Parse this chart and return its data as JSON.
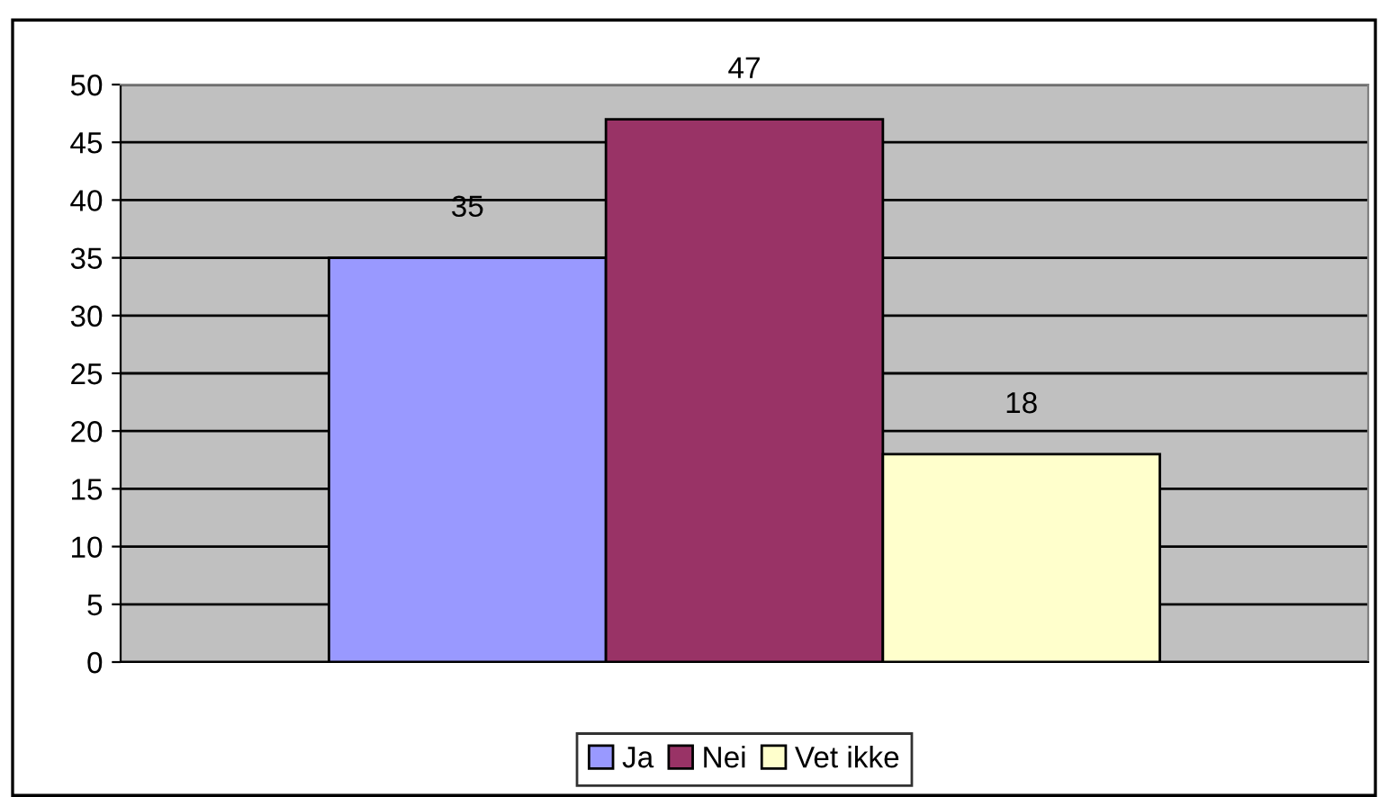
{
  "chart_data": {
    "type": "bar",
    "categories": [
      null
    ],
    "series": [
      {
        "name": "Ja",
        "color": "#9999ff",
        "values": [
          35
        ]
      },
      {
        "name": "Nei",
        "color": "#993366",
        "values": [
          47
        ]
      },
      {
        "name": "Vet ikke",
        "color": "#ffffcc",
        "values": [
          18
        ]
      }
    ],
    "ylim": [
      0,
      50
    ],
    "yticks": [
      0,
      5,
      10,
      15,
      20,
      25,
      30,
      35,
      40,
      45,
      50
    ],
    "grid": "y",
    "legend": "bottom",
    "data_labels": true
  }
}
